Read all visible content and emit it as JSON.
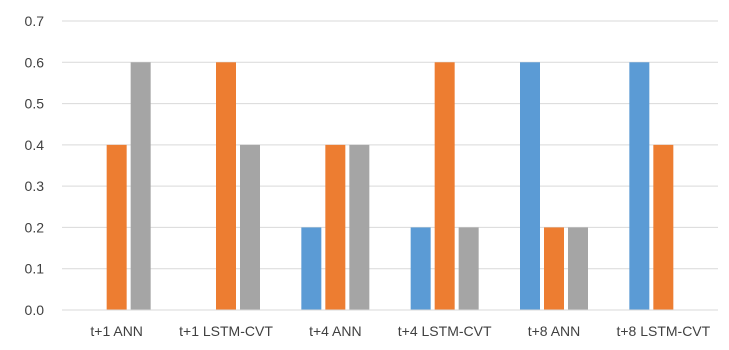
{
  "chart_data": {
    "type": "bar",
    "title": "",
    "xlabel": "",
    "ylabel": "",
    "categories": [
      "t+1 ANN",
      "t+1 LSTM-CVT",
      "t+4 ANN",
      "t+4 LSTM-CVT",
      "t+8 ANN",
      "t+8 LSTM-CVT"
    ],
    "series": [
      {
        "color": "#5B9BD5",
        "values": [
          0,
          0,
          0.2,
          0.2,
          0.6,
          0.6
        ]
      },
      {
        "color": "#ED7D31",
        "values": [
          0.4,
          0.6,
          0.4,
          0.6,
          0.2,
          0.4
        ]
      },
      {
        "color": "#A5A5A5",
        "values": [
          0.6,
          0.4,
          0.4,
          0.2,
          0.2,
          0
        ]
      }
    ],
    "ylim": [
      0,
      0.7
    ],
    "yticks": [
      "0.0",
      "0.1",
      "0.2",
      "0.3",
      "0.4",
      "0.5",
      "0.6",
      "0.7"
    ],
    "grid": true,
    "legend": "none",
    "gridColor": "#D9D9D9",
    "axisColor": "#D9D9D9"
  }
}
